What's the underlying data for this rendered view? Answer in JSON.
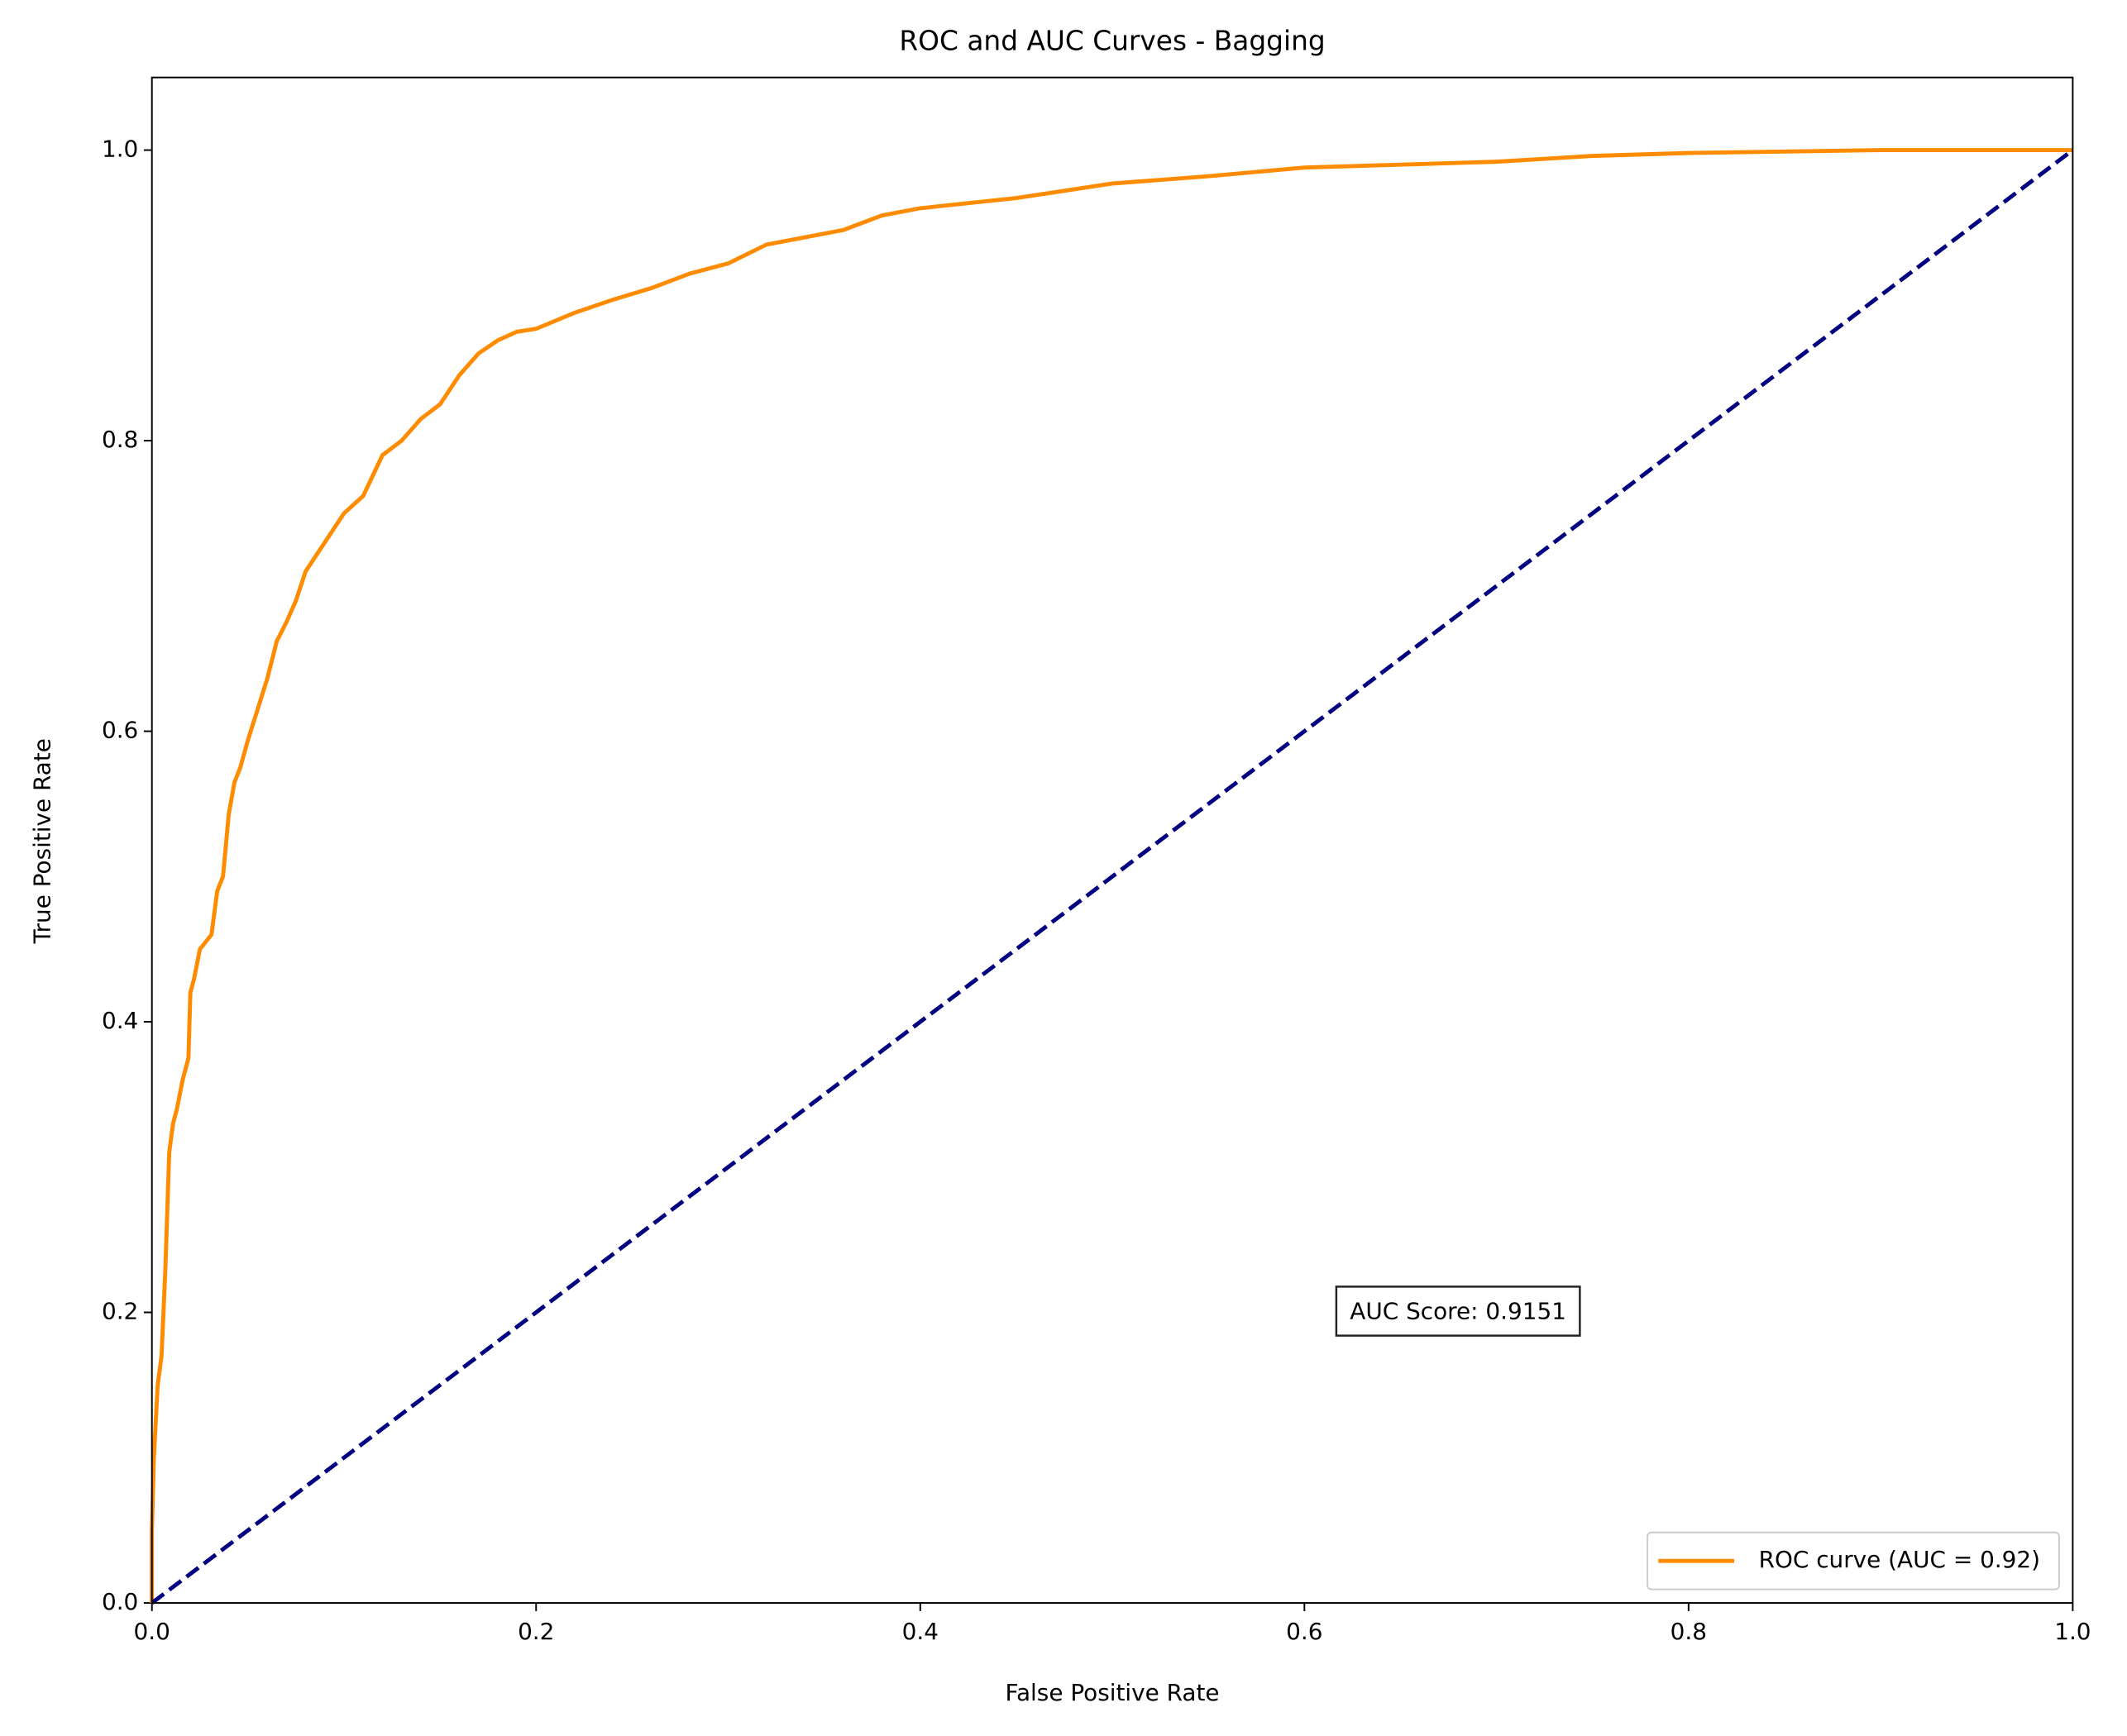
{
  "chart_data": {
    "type": "line",
    "title": "ROC and AUC Curves - Bagging",
    "xlabel": "False Positive Rate",
    "ylabel": "True Positive Rate",
    "xlim": [
      0,
      1
    ],
    "ylim": [
      0,
      1.05
    ],
    "xticks": [
      {
        "value": 0,
        "label": "0.0"
      },
      0.2,
      0.4,
      0.6,
      0.8,
      {
        "value": 1,
        "label": "1.0"
      }
    ],
    "yticks": [
      {
        "value": 0,
        "label": "0.0"
      },
      0.2,
      0.4,
      0.6,
      0.8,
      {
        "value": 1,
        "label": "1.0"
      }
    ],
    "legend": "lower right",
    "annotation": "AUC Score: 0.9151",
    "series": [
      {
        "name": "ROC curve (AUC = 0.92)",
        "color": "#ff8c00",
        "style": "solid",
        "x": [
          0,
          0,
          0.001,
          0.003,
          0.005,
          0.007,
          0.009,
          0.011,
          0.013,
          0.016,
          0.019,
          0.02,
          0.022,
          0.025,
          0.028,
          0.031,
          0.034,
          0.037,
          0.04,
          0.043,
          0.046,
          0.05,
          0.055,
          0.06,
          0.065,
          0.07,
          0.075,
          0.08,
          0.085,
          0.09,
          0.1,
          0.11,
          0.12,
          0.13,
          0.14,
          0.15,
          0.16,
          0.17,
          0.18,
          0.19,
          0.2,
          0.22,
          0.24,
          0.26,
          0.28,
          0.3,
          0.32,
          0.34,
          0.36,
          0.38,
          0.4,
          0.45,
          0.5,
          0.55,
          0.6,
          0.65,
          0.7,
          0.75,
          0.8,
          0.85,
          0.9,
          1
        ],
        "values": [
          0,
          0.05,
          0.1,
          0.15,
          0.17,
          0.23,
          0.31,
          0.33,
          0.34,
          0.36,
          0.375,
          0.42,
          0.43,
          0.45,
          0.455,
          0.46,
          0.49,
          0.5,
          0.543,
          0.565,
          0.575,
          0.594,
          0.615,
          0.636,
          0.662,
          0.675,
          0.69,
          0.71,
          0.72,
          0.73,
          0.75,
          0.762,
          0.79,
          0.8,
          0.815,
          0.825,
          0.845,
          0.86,
          0.869,
          0.875,
          0.877,
          0.888,
          0.897,
          0.905,
          0.915,
          0.922,
          0.935,
          0.94,
          0.945,
          0.955,
          0.96,
          0.967,
          0.977,
          0.982,
          0.988,
          0.99,
          0.992,
          0.996,
          0.998,
          0.999,
          1,
          1
        ]
      },
      {
        "color": "#000080",
        "style": "dashed",
        "x": [
          0,
          1
        ],
        "values": [
          0,
          1
        ]
      }
    ]
  }
}
